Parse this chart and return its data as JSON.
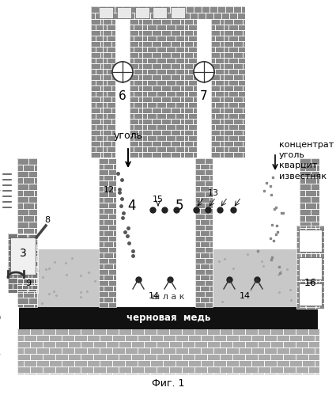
{
  "title": "Фиг. 1",
  "label_ugol": "уголь",
  "label_kontsentrat": "концентрат\nуголь\nкварцит\nизвестняк",
  "label_shlak": "ш л а к",
  "label_chernova": "черновая  медь",
  "bg_color": "#ffffff"
}
